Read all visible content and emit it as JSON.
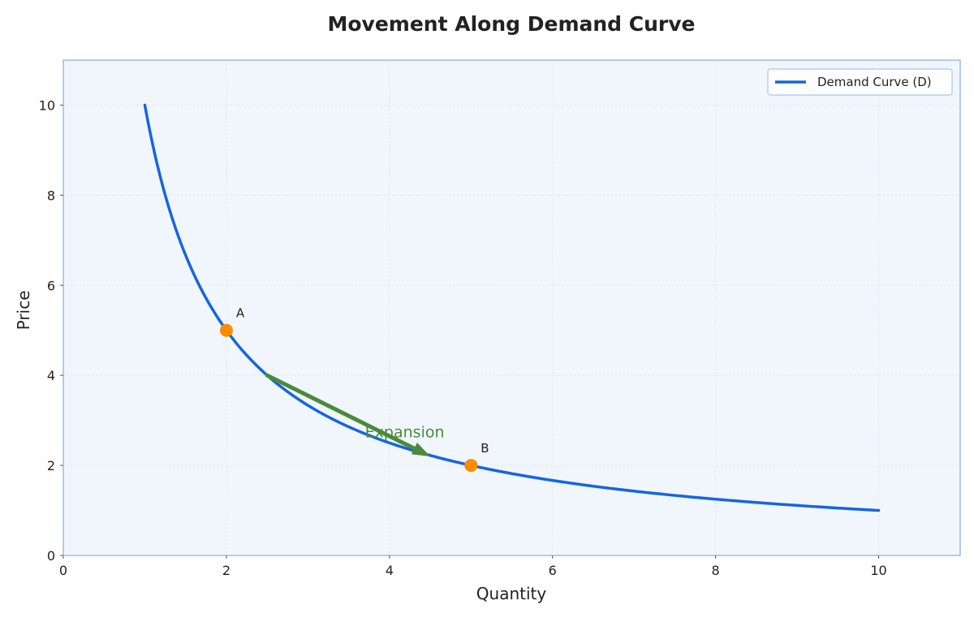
{
  "chart_data": {
    "type": "line",
    "title": "Movement Along Demand Curve",
    "xlabel": "Quantity",
    "ylabel": "Price",
    "xlim": [
      0,
      11
    ],
    "ylim": [
      0,
      11
    ],
    "xticks": [
      0,
      2,
      4,
      6,
      8,
      10
    ],
    "yticks": [
      0,
      2,
      4,
      6,
      8,
      10
    ],
    "grid": true,
    "legend_position": "top-right",
    "colors": {
      "curve": "#1565e0",
      "points": "#ff8c00",
      "arrow": "#4a8a3a",
      "plot_bg": "#f1f6fc",
      "frame": "#9bbcec",
      "grid": "#d9e3ef"
    },
    "series": [
      {
        "name": "Demand Curve (D)",
        "equation": "P = 10 / Q",
        "x": [
          1,
          1.25,
          1.5,
          1.75,
          2,
          2.5,
          3,
          3.5,
          4,
          4.5,
          5,
          5.5,
          6,
          6.5,
          7,
          7.5,
          8,
          8.5,
          9,
          9.5,
          10
        ],
        "y": [
          10,
          8,
          6.67,
          5.71,
          5,
          4,
          3.33,
          2.86,
          2.5,
          2.22,
          2,
          1.82,
          1.67,
          1.54,
          1.43,
          1.33,
          1.25,
          1.18,
          1.11,
          1.05,
          1
        ]
      }
    ],
    "points": [
      {
        "label": "A",
        "x": 2,
        "y": 5
      },
      {
        "label": "B",
        "x": 5,
        "y": 2
      }
    ],
    "annotations": [
      {
        "text": "Expansion",
        "from": [
          2.5,
          4
        ],
        "to": [
          4.5,
          2.2
        ],
        "text_at": [
          3.7,
          2.75
        ]
      }
    ]
  }
}
